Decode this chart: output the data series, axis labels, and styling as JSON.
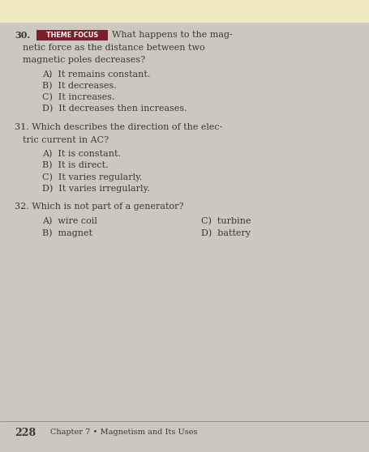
{
  "bg_color": "#ccc8be",
  "top_strip_color": "#f0e8c0",
  "theme_focus_bg": "#7b1f2a",
  "theme_focus_fg": "#ffffff",
  "text_color": "#3d3830",
  "footer_line_color": "#888880",
  "q30_num": "30.",
  "theme_focus_text": "THEME FOCUS",
  "q30_line1": "What happens to the mag-",
  "q30_line2": "netic force as the distance between two",
  "q30_line3": "magnetic poles decreases?",
  "q30_a": "A)  It remains constant.",
  "q30_b": "B)  It decreases.",
  "q30_c": "C)  It increases.",
  "q30_d": "D)  It decreases then increases.",
  "q31_line1": "31. Which describes the direction of the elec-",
  "q31_line2": "tric current in AC?",
  "q31_a": "A)  It is constant.",
  "q31_b": "B)  It is direct.",
  "q31_c": "C)  It varies regularly.",
  "q31_d": "D)  It varies irregularly.",
  "q32_line1": "32. Which is not part of a generator?",
  "q32_a": "A)  wire coil",
  "q32_c": "C)  turbine",
  "q32_b": "B)  magnet",
  "q32_d": "D)  battery",
  "footer_num": "228",
  "footer_text": "Chapter 7 • Magnetism and Its Uses",
  "fs_main": 8.0,
  "fs_badge": 5.8,
  "fs_footer_num": 9.0,
  "fs_footer": 7.0
}
